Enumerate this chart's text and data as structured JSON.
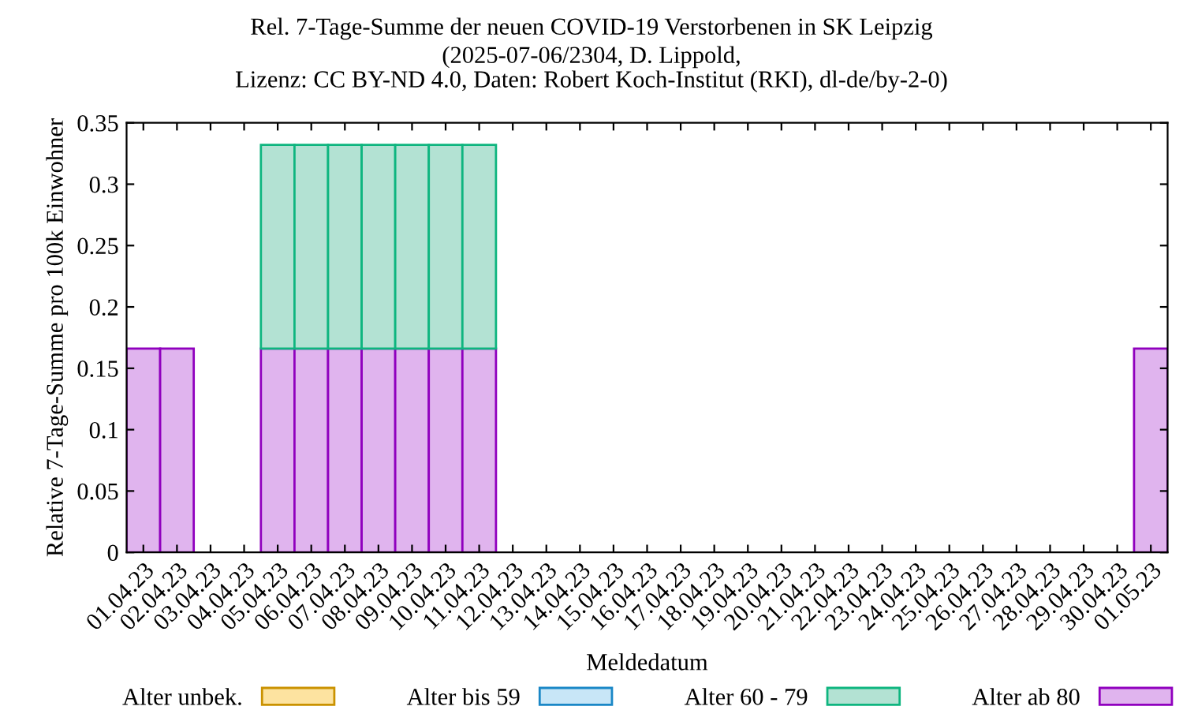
{
  "chart_data": {
    "type": "bar",
    "stacked": true,
    "title": "Rel. 7-Tage-Summe der neuen COVID-19 Verstorbenen in SK Leipzig",
    "subtitle": "(2025-07-06/2304, D. Lippold,\nLizenz: CC BY-ND 4.0, Daten: Robert Koch-Institut (RKI), dl-de/by-2-0)",
    "xlabel": "Meldedatum",
    "ylabel": "Relative 7-Tage-Summe pro 100k Einwohner",
    "categories": [
      "01.04.23",
      "02.04.23",
      "03.04.23",
      "04.04.23",
      "05.04.23",
      "06.04.23",
      "07.04.23",
      "08.04.23",
      "09.04.23",
      "10.04.23",
      "11.04.23",
      "12.04.23",
      "13.04.23",
      "14.04.23",
      "15.04.23",
      "16.04.23",
      "17.04.23",
      "18.04.23",
      "19.04.23",
      "20.04.23",
      "21.04.23",
      "22.04.23",
      "23.04.23",
      "24.04.23",
      "25.04.23",
      "26.04.23",
      "27.04.23",
      "28.04.23",
      "29.04.23",
      "30.04.23",
      "01.05.23"
    ],
    "series": [
      {
        "name": "Alter ab 80",
        "color": "#e0b4ee",
        "values": [
          0.166,
          0.166,
          0,
          0,
          0.166,
          0.166,
          0.166,
          0.166,
          0.166,
          0.166,
          0.166,
          0,
          0,
          0,
          0,
          0,
          0,
          0,
          0,
          0,
          0,
          0,
          0,
          0,
          0,
          0,
          0,
          0,
          0,
          0,
          0.166
        ]
      },
      {
        "name": "Alter 60 - 79",
        "color": "#b3e2d3",
        "values": [
          0,
          0,
          0,
          0,
          0.166,
          0.166,
          0.166,
          0.166,
          0.166,
          0.166,
          0.166,
          0,
          0,
          0,
          0,
          0,
          0,
          0,
          0,
          0,
          0,
          0,
          0,
          0,
          0,
          0,
          0,
          0,
          0,
          0,
          0
        ]
      },
      {
        "name": "Alter bis 59",
        "color": "#c8e6f7",
        "values": [
          0,
          0,
          0,
          0,
          0,
          0,
          0,
          0,
          0,
          0,
          0,
          0,
          0,
          0,
          0,
          0,
          0,
          0,
          0,
          0,
          0,
          0,
          0,
          0,
          0,
          0,
          0,
          0,
          0,
          0,
          0
        ]
      },
      {
        "name": "Alter unbek.",
        "color": "#fde3a0",
        "values": [
          0,
          0,
          0,
          0,
          0,
          0,
          0,
          0,
          0,
          0,
          0,
          0,
          0,
          0,
          0,
          0,
          0,
          0,
          0,
          0,
          0,
          0,
          0,
          0,
          0,
          0,
          0,
          0,
          0,
          0,
          0
        ]
      }
    ],
    "ylim": [
      0,
      0.35
    ],
    "yticks": [
      0,
      0.05,
      0.1,
      0.15,
      0.2,
      0.25,
      0.3,
      0.35
    ],
    "grid": false,
    "legend": "bottom"
  }
}
